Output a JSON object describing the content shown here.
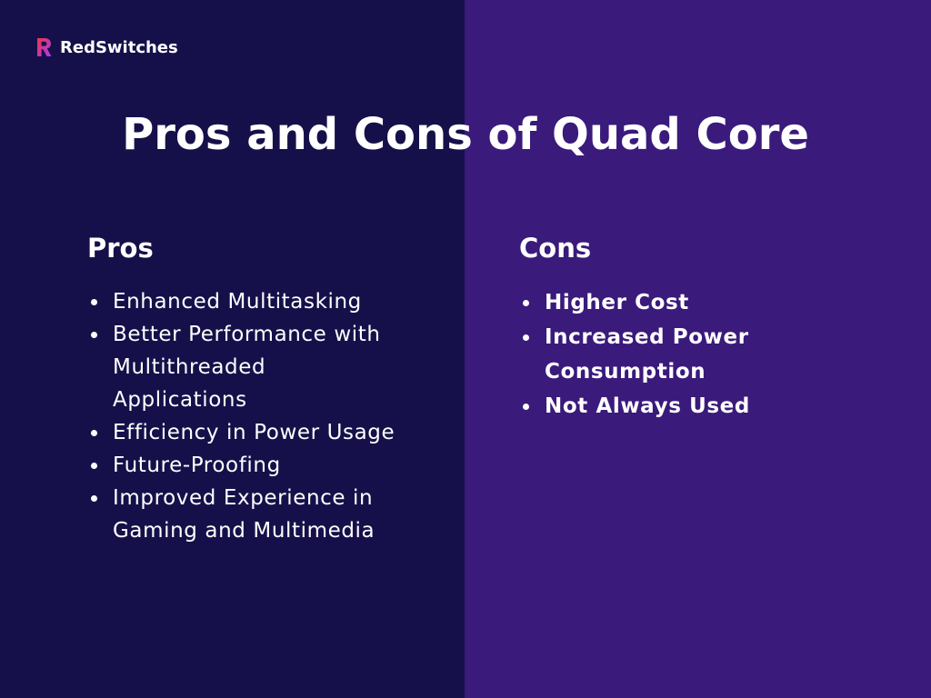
{
  "brand": {
    "name": "RedSwitches",
    "logo_icon": "redswitches-logo-icon",
    "colors": {
      "logo_red": "#f0354a",
      "logo_purple": "#a13cf5"
    }
  },
  "title": "Pros and Cons of Quad Core",
  "colors": {
    "left_background": "#16104a",
    "right_background": "#3a1a7b",
    "text": "#ffffff"
  },
  "pros": {
    "heading": "Pros",
    "items": [
      "Enhanced Multitasking",
      "Better Performance with Multithreaded Applications",
      "Efficiency in Power Usage",
      "Future-Proofing",
      "Improved Experience in Gaming and Multimedia"
    ]
  },
  "cons": {
    "heading": "Cons",
    "items": [
      "Higher Cost",
      "Increased Power Consumption",
      "Not Always Used"
    ]
  }
}
